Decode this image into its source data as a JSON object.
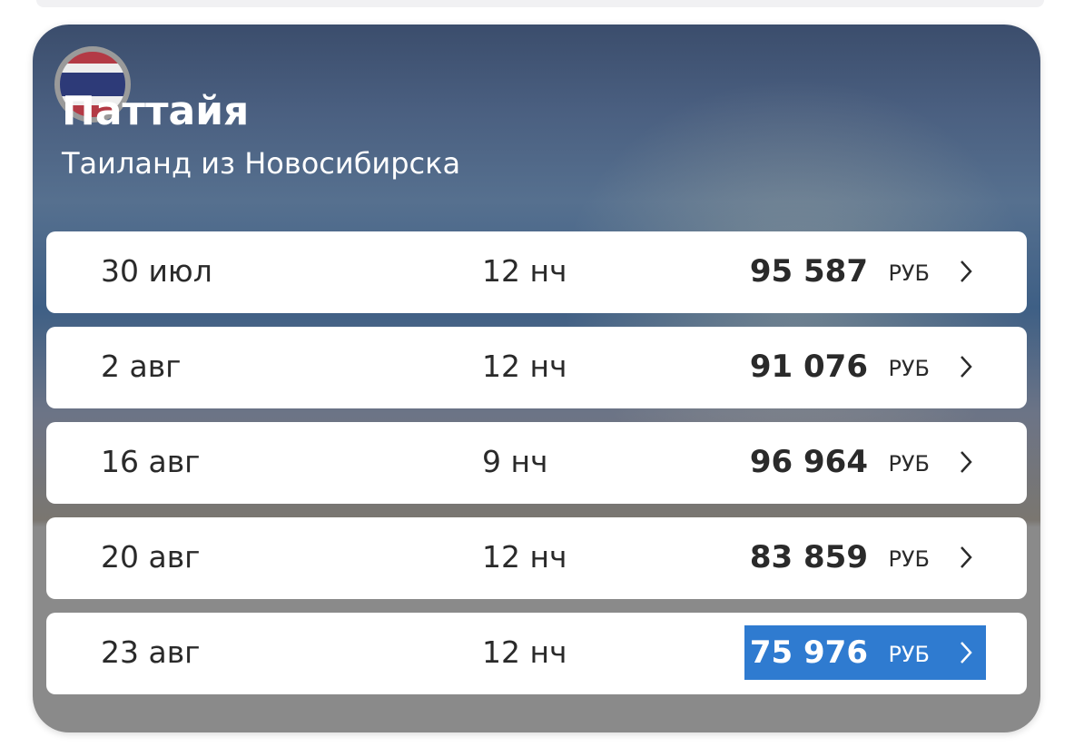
{
  "header": {
    "title": "Паттайя",
    "subtitle": "Таиланд из Новосибирска"
  },
  "offers": [
    {
      "date": "30 июл",
      "nights": "12 нч",
      "price": "95 587",
      "currency": "РУБ"
    },
    {
      "date": "2 авг",
      "nights": "12 нч",
      "price": "91 076",
      "currency": "РУБ"
    },
    {
      "date": "16 авг",
      "nights": "9 нч",
      "price": "96 964",
      "currency": "РУБ"
    },
    {
      "date": "20 авг",
      "nights": "12 нч",
      "price": "83 859",
      "currency": "РУБ"
    },
    {
      "date": "23 авг",
      "nights": "12 нч",
      "price": "75 976",
      "currency": "РУБ"
    }
  ]
}
